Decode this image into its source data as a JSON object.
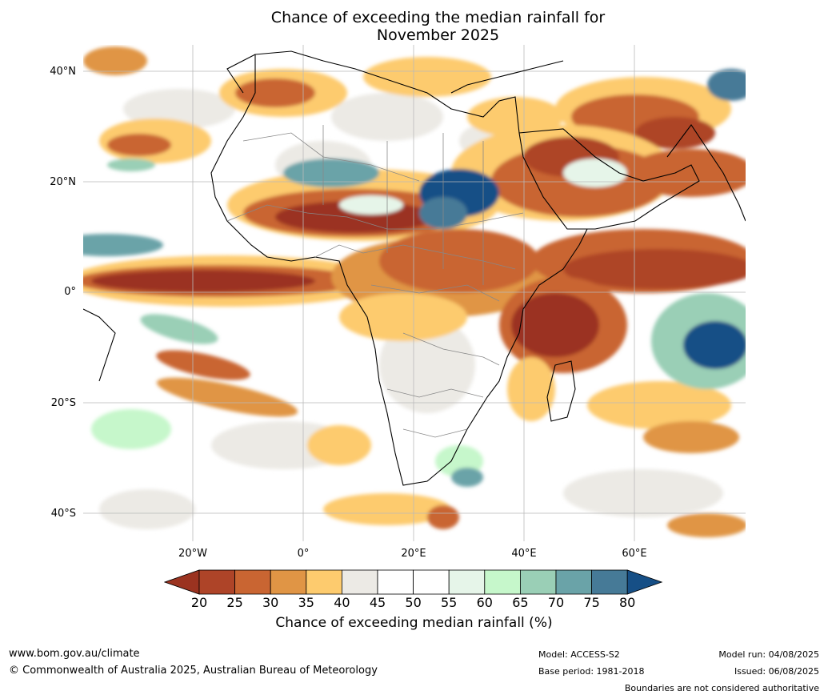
{
  "title_line1": "Chance of exceeding the median rainfall for",
  "title_line2": "November 2025",
  "lat_labels": [
    "40°N",
    "20°N",
    "0°",
    "20°S",
    "40°S"
  ],
  "lon_labels": [
    "20°W",
    "0°",
    "20°E",
    "40°E",
    "60°E"
  ],
  "colorbar": {
    "label": "Chance of exceeding median rainfall (%)",
    "ticks": [
      "20",
      "25",
      "30",
      "35",
      "40",
      "45",
      "50",
      "55",
      "60",
      "65",
      "70",
      "75",
      "80"
    ],
    "colors": [
      "#9b3320",
      "#ae4428",
      "#c96532",
      "#e09545",
      "#fdcb6e",
      "#eceae5",
      "#ffffff",
      "#ffffff",
      "#e6f5e9",
      "#c6f7cb",
      "#9acfb6",
      "#6aa3a8",
      "#467a97",
      "#164f86"
    ]
  },
  "footer": {
    "website": "www.bom.gov.au/climate",
    "copyright": "© Commonwealth of Australia 2025, Australian Bureau of Meteorology",
    "model": "Model: ACCESS-S2",
    "base_period": "Base period: 1981-2018",
    "model_run": "Model run: 04/08/2025",
    "issued": "Issued: 06/08/2025",
    "disclaimer": "Boundaries are not considered authoritative"
  }
}
